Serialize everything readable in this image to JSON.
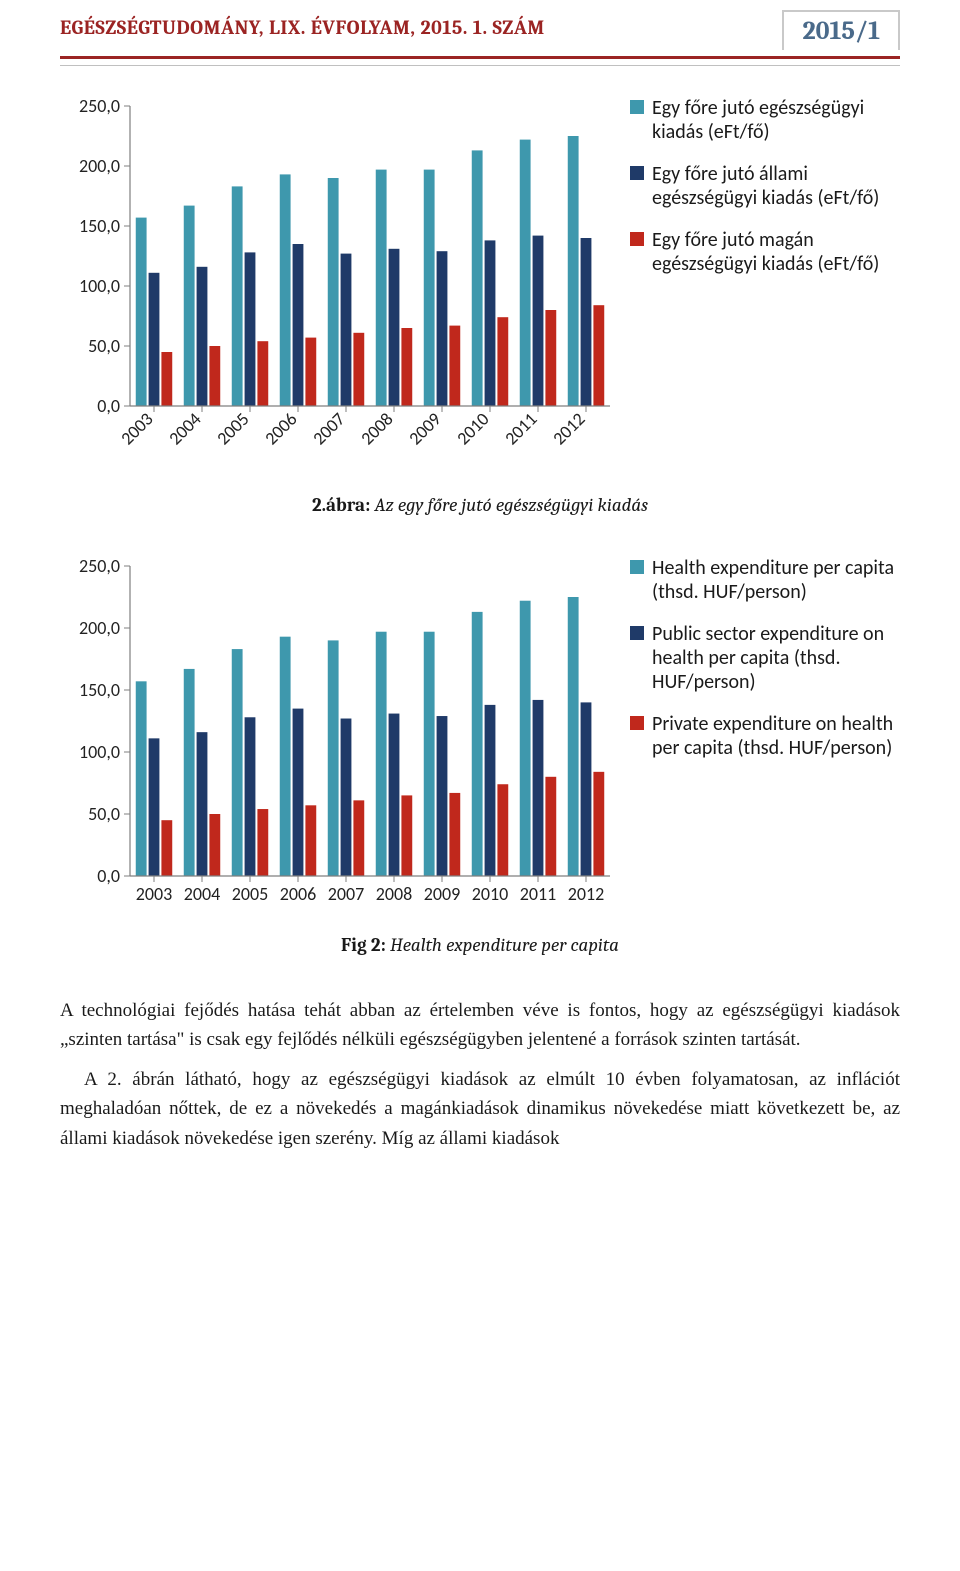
{
  "header": {
    "title": "EGÉSZSÉGTUDOMÁNY, LIX. ÉVFOLYAM, 2015. 1. SZÁM",
    "year_label": "2015/1"
  },
  "chart1": {
    "type": "bar",
    "categories": [
      "2003",
      "2004",
      "2005",
      "2006",
      "2007",
      "2008",
      "2009",
      "2010",
      "2011",
      "2012"
    ],
    "series": [
      {
        "name": "Egy főre jutó egészségügyi kiadás (eFt/fő)",
        "color": "#3e98ad",
        "values": [
          157,
          167,
          183,
          193,
          190,
          197,
          197,
          213,
          222,
          225
        ]
      },
      {
        "name": "Egy főre jutó állami egészségügyi kiadás (eFt/fő)",
        "color": "#1f3a68",
        "values": [
          111,
          116,
          128,
          135,
          127,
          131,
          129,
          138,
          142,
          140
        ]
      },
      {
        "name": "Egy főre jutó magán egészségügyi kiadás (eFt/fő)",
        "color": "#c0281c",
        "values": [
          45,
          50,
          54,
          57,
          61,
          65,
          67,
          74,
          80,
          84
        ]
      }
    ],
    "yaxis": {
      "min": 0,
      "max": 250,
      "ticks": [
        0,
        50,
        100,
        150,
        200,
        250
      ],
      "labels": [
        "0,0",
        "50,0",
        "100,0",
        "150,0",
        "200,0",
        "250,0"
      ]
    },
    "xlabel_rotation": -45,
    "plot_border_color": "#7f7f7f",
    "tick_color": "#7f7f7f",
    "background": "#ffffff",
    "caption_bold": "2.ábra:",
    "caption_italic": " Az egy főre jutó egészségügyi kiadás"
  },
  "chart2": {
    "type": "bar",
    "categories": [
      "2003",
      "2004",
      "2005",
      "2006",
      "2007",
      "2008",
      "2009",
      "2010",
      "2011",
      "2012"
    ],
    "series": [
      {
        "name": "Health expenditure per capita (thsd. HUF/person)",
        "color": "#3e98ad",
        "values": [
          157,
          167,
          183,
          193,
          190,
          197,
          197,
          213,
          222,
          225
        ]
      },
      {
        "name": "Public sector expenditure on health per capita (thsd. HUF/person)",
        "color": "#1f3a68",
        "values": [
          111,
          116,
          128,
          135,
          127,
          131,
          129,
          138,
          142,
          140
        ]
      },
      {
        "name": "Private expenditure on health per capita (thsd. HUF/person)",
        "color": "#c0281c",
        "values": [
          45,
          50,
          54,
          57,
          61,
          65,
          67,
          74,
          80,
          84
        ]
      }
    ],
    "yaxis": {
      "min": 0,
      "max": 250,
      "ticks": [
        0,
        50,
        100,
        150,
        200,
        250
      ],
      "labels": [
        "0,0",
        "50,0",
        "100,0",
        "150,0",
        "200,0",
        "250,0"
      ]
    },
    "xlabel_rotation": 0,
    "plot_border_color": "#7f7f7f",
    "tick_color": "#7f7f7f",
    "background": "#ffffff",
    "caption_bold": "Fig 2:",
    "caption_italic": " Health expenditure per capita"
  },
  "paragraphs": {
    "p1": "A technológiai fejődés hatása tehát abban az értelemben véve is fontos, hogy az egészségügyi kiadások „szinten tartása\" is csak egy fejlődés nélküli egészségügyben jelentené a források szinten tartását.",
    "p2": "A 2. ábrán látható, hogy az egészségügyi kiadások az elmúlt 10 évben folyamatosan, az inflációt meghaladóan nőttek, de ez a növekedés a magánkiadások dinamikus növekedése miatt következett be, az állami kiadások növekedése igen szerény. Míg az állami kiadások"
  }
}
